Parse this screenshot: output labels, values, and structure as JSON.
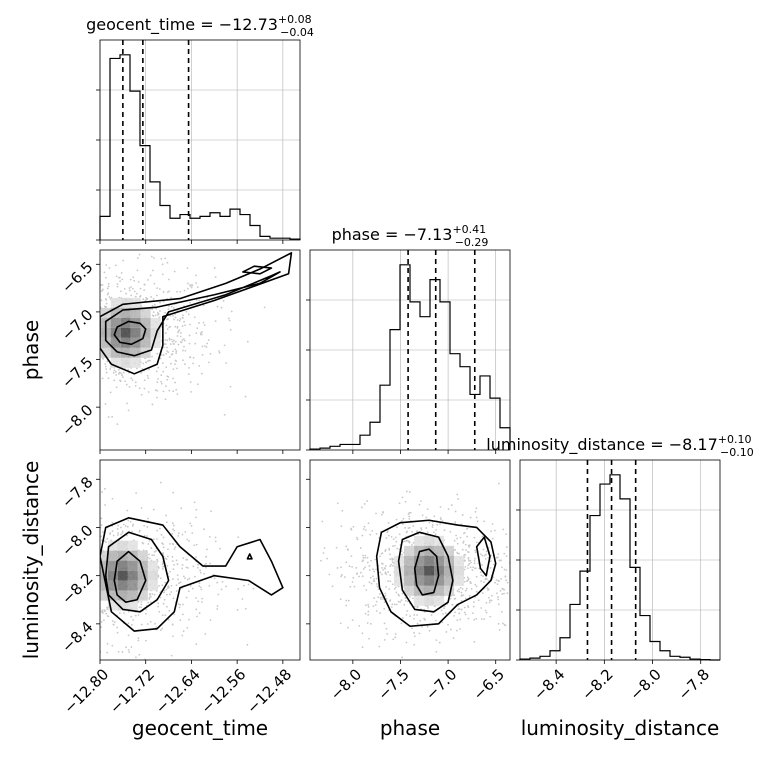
{
  "chart_data": {
    "type": "corner",
    "parameters": [
      {
        "name": "geocent_time",
        "axis_label": "geocent_time",
        "range": [
          -12.8,
          -12.45
        ],
        "ticks": [
          -12.8,
          -12.72,
          -12.64,
          -12.56,
          -12.48
        ],
        "tick_labels": [
          "−12.80",
          "−12.72",
          "−12.64",
          "−12.56",
          "−12.48"
        ],
        "title": {
          "prefix": "geocent_time = ",
          "value": "−12.73",
          "plus": "+0.08",
          "minus": "−0.04"
        },
        "quantiles": [
          -12.76,
          -12.725,
          -12.645
        ],
        "hist": [
          0.13,
          1.0,
          1.02,
          0.82,
          0.52,
          0.32,
          0.19,
          0.12,
          0.14,
          0.12,
          0.13,
          0.15,
          0.13,
          0.17,
          0.14,
          0.08,
          0.02,
          0.01,
          0.01,
          0.005
        ]
      },
      {
        "name": "phase",
        "axis_label": "phase",
        "range": [
          -8.45,
          -6.35
        ],
        "ticks": [
          -8.0,
          -7.5,
          -7.0,
          -6.5
        ],
        "tick_labels": [
          "−8.0",
          "−7.5",
          "−7.0",
          "−6.5"
        ],
        "title": {
          "prefix": "phase = ",
          "value": "−7.13",
          "plus": "+0.41",
          "minus": "−0.29"
        },
        "quantiles": [
          -7.42,
          -7.13,
          -6.72
        ],
        "hist": [
          0.005,
          0.01,
          0.02,
          0.03,
          0.03,
          0.08,
          0.15,
          0.35,
          0.65,
          1.0,
          0.8,
          0.72,
          0.92,
          0.8,
          0.52,
          0.45,
          0.3,
          0.4,
          0.28,
          0.12
        ]
      },
      {
        "name": "luminosity_distance",
        "axis_label": "luminosity_distance",
        "range": [
          -8.55,
          -7.72
        ],
        "ticks": [
          -8.4,
          -8.2,
          -8.0,
          -7.8
        ],
        "tick_labels": [
          "−8.4",
          "−8.2",
          "−8.0",
          "−7.8"
        ],
        "title": {
          "prefix": "luminosity_distance = ",
          "value": "−8.17",
          "plus": "+0.10",
          "minus": "−0.10"
        },
        "quantiles": [
          -8.27,
          -8.17,
          -8.07
        ],
        "hist": [
          0.005,
          0.01,
          0.02,
          0.05,
          0.12,
          0.3,
          0.48,
          0.78,
          0.95,
          1.0,
          0.87,
          0.5,
          0.24,
          0.1,
          0.05,
          0.02,
          0.015,
          0.005,
          0.002,
          0.0
        ]
      }
    ],
    "pairs": [
      {
        "x": "geocent_time",
        "y": "phase",
        "peak": [
          -12.755,
          -7.22
        ],
        "contours": [
          [
            [
              -12.775,
              -7.24
            ],
            [
              -12.77,
              -7.16
            ],
            [
              -12.75,
              -7.1
            ],
            [
              -12.73,
              -7.12
            ],
            [
              -12.72,
              -7.18
            ],
            [
              -12.725,
              -7.28
            ],
            [
              -12.745,
              -7.34
            ],
            [
              -12.765,
              -7.32
            ]
          ],
          [
            [
              -12.79,
              -7.3
            ],
            [
              -12.79,
              -7.1
            ],
            [
              -12.76,
              -6.98
            ],
            [
              -12.7,
              -6.95
            ],
            [
              -12.6,
              -6.82
            ],
            [
              -12.52,
              -6.7
            ],
            [
              -12.485,
              -6.58
            ],
            [
              -12.5,
              -6.62
            ],
            [
              -12.58,
              -6.82
            ],
            [
              -12.68,
              -7.0
            ],
            [
              -12.7,
              -7.2
            ],
            [
              -12.71,
              -7.4
            ],
            [
              -12.74,
              -7.46
            ],
            [
              -12.77,
              -7.42
            ]
          ],
          [
            [
              -12.8,
              -7.38
            ],
            [
              -12.8,
              -7.05
            ],
            [
              -12.76,
              -6.92
            ],
            [
              -12.66,
              -6.86
            ],
            [
              -12.58,
              -6.7
            ],
            [
              -12.52,
              -6.55
            ],
            [
              -12.465,
              -6.38
            ],
            [
              -12.47,
              -6.6
            ],
            [
              -12.6,
              -6.88
            ],
            [
              -12.69,
              -7.05
            ],
            [
              -12.69,
              -7.35
            ],
            [
              -12.7,
              -7.55
            ],
            [
              -12.74,
              -7.65
            ],
            [
              -12.78,
              -7.55
            ]
          ],
          [
            [
              -12.55,
              -6.58
            ],
            [
              -12.53,
              -6.52
            ],
            [
              -12.5,
              -6.54
            ],
            [
              -12.52,
              -6.6
            ]
          ]
        ]
      },
      {
        "x": "geocent_time",
        "y": "luminosity_distance",
        "peak": [
          -12.76,
          -8.2
        ],
        "contours": [
          [
            [
              -12.775,
              -8.22
            ],
            [
              -12.77,
              -8.14
            ],
            [
              -12.75,
              -8.1
            ],
            [
              -12.73,
              -8.14
            ],
            [
              -12.72,
              -8.22
            ],
            [
              -12.735,
              -8.3
            ],
            [
              -12.755,
              -8.31
            ],
            [
              -12.77,
              -8.28
            ]
          ],
          [
            [
              -12.79,
              -8.2
            ],
            [
              -12.785,
              -8.08
            ],
            [
              -12.75,
              -8.02
            ],
            [
              -12.71,
              -8.05
            ],
            [
              -12.69,
              -8.12
            ],
            [
              -12.68,
              -8.22
            ],
            [
              -12.7,
              -8.3
            ],
            [
              -12.73,
              -8.35
            ],
            [
              -12.76,
              -8.34
            ],
            [
              -12.785,
              -8.28
            ]
          ],
          [
            [
              -12.8,
              -8.12
            ],
            [
              -12.79,
              -8.0
            ],
            [
              -12.75,
              -7.96
            ],
            [
              -12.69,
              -7.99
            ],
            [
              -12.66,
              -8.08
            ],
            [
              -12.62,
              -8.16
            ],
            [
              -12.58,
              -8.16
            ],
            [
              -12.56,
              -8.08
            ],
            [
              -12.52,
              -8.05
            ],
            [
              -12.5,
              -8.14
            ],
            [
              -12.48,
              -8.25
            ],
            [
              -12.5,
              -8.28
            ],
            [
              -12.54,
              -8.22
            ],
            [
              -12.6,
              -8.2
            ],
            [
              -12.66,
              -8.25
            ],
            [
              -12.67,
              -8.35
            ],
            [
              -12.7,
              -8.42
            ],
            [
              -12.74,
              -8.43
            ],
            [
              -12.78,
              -8.35
            ]
          ],
          [
            [
              -12.542,
              -8.13
            ],
            [
              -12.538,
              -8.11
            ],
            [
              -12.534,
              -8.13
            ]
          ]
        ]
      },
      {
        "x": "phase",
        "y": "luminosity_distance",
        "peak": [
          -7.2,
          -8.18
        ],
        "contours": [
          [
            [
              -7.35,
              -8.17
            ],
            [
              -7.3,
              -8.1
            ],
            [
              -7.2,
              -8.09
            ],
            [
              -7.12,
              -8.12
            ],
            [
              -7.1,
              -8.2
            ],
            [
              -7.15,
              -8.27
            ],
            [
              -7.27,
              -8.28
            ],
            [
              -7.33,
              -8.24
            ]
          ],
          [
            [
              -7.52,
              -8.14
            ],
            [
              -7.48,
              -8.05
            ],
            [
              -7.3,
              -8.02
            ],
            [
              -7.1,
              -8.04
            ],
            [
              -7.0,
              -8.12
            ],
            [
              -6.95,
              -8.22
            ],
            [
              -7.0,
              -8.31
            ],
            [
              -7.15,
              -8.35
            ],
            [
              -7.35,
              -8.34
            ],
            [
              -7.48,
              -8.26
            ]
          ],
          [
            [
              -7.75,
              -8.12
            ],
            [
              -7.7,
              -8.02
            ],
            [
              -7.5,
              -7.98
            ],
            [
              -7.2,
              -7.97
            ],
            [
              -6.9,
              -7.99
            ],
            [
              -6.7,
              -8.0
            ],
            [
              -6.55,
              -8.06
            ],
            [
              -6.5,
              -8.15
            ],
            [
              -6.55,
              -8.22
            ],
            [
              -6.7,
              -8.28
            ],
            [
              -6.9,
              -8.32
            ],
            [
              -7.1,
              -8.4
            ],
            [
              -7.4,
              -8.41
            ],
            [
              -7.6,
              -8.35
            ],
            [
              -7.72,
              -8.25
            ]
          ],
          [
            [
              -6.7,
              -8.08
            ],
            [
              -6.62,
              -8.04
            ],
            [
              -6.56,
              -8.12
            ],
            [
              -6.6,
              -8.2
            ],
            [
              -6.66,
              -8.17
            ]
          ]
        ]
      }
    ]
  }
}
